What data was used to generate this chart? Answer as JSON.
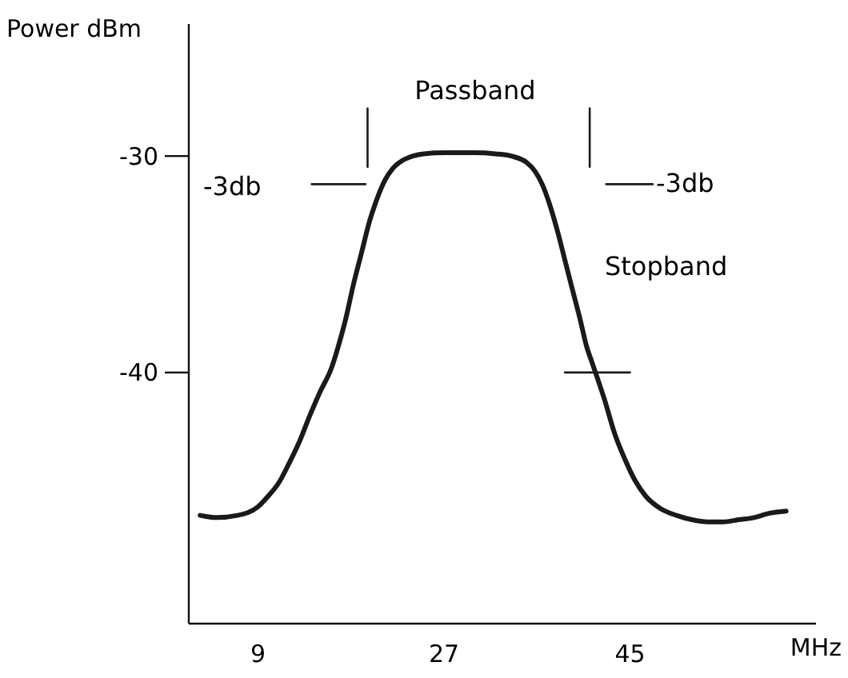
{
  "chart_data": {
    "type": "line",
    "xlabel": "MHz",
    "ylabel": "Power dBm",
    "xlim": [
      2.3,
      63
    ],
    "ylim": [
      -51.6,
      -23.9
    ],
    "xticks": [
      9,
      27,
      45
    ],
    "yticks": [
      -30,
      -40
    ],
    "grid": false,
    "marker": "none",
    "line_style": "solid",
    "series": [
      {
        "color": "#1a1a1a",
        "x": [
          3.4,
          5,
          7,
          9,
          10,
          11,
          12,
          13,
          14,
          15,
          16.1,
          17,
          17.5,
          18.2,
          19,
          19.8,
          20.5,
          21.3,
          22,
          23,
          24,
          25,
          27,
          30,
          32,
          33.5,
          35,
          35.8,
          36.5,
          37.2,
          38,
          38.8,
          39.5,
          40.2,
          40.8,
          41.3,
          41.8,
          42.5,
          43.5,
          44.5,
          45.5,
          46.5,
          48,
          49.5,
          51,
          52.5,
          54,
          55.5,
          57,
          58.5,
          60.1
        ],
        "values": [
          -46.6,
          -46.7,
          -46.6,
          -46.2,
          -45.7,
          -45.1,
          -44.2,
          -43.2,
          -42,
          -40.9,
          -39.8,
          -38.4,
          -37.5,
          -36,
          -34.5,
          -33,
          -32,
          -31.1,
          -30.6,
          -30.2,
          -30,
          -29.9,
          -29.85,
          -29.85,
          -29.9,
          -30,
          -30.3,
          -30.7,
          -31.3,
          -32.2,
          -33.5,
          -35,
          -36.3,
          -37.6,
          -38.8,
          -39.5,
          -40.2,
          -41.2,
          -42.8,
          -44,
          -45,
          -45.7,
          -46.3,
          -46.6,
          -46.8,
          -46.9,
          -46.9,
          -46.8,
          -46.7,
          -46.5,
          -46.4
        ]
      },
      {
        "type": "line",
        "color": "#1a1a1a",
        "x": [
          38.7,
          45
        ],
        "values": [
          -40,
          -40
        ]
      },
      {
        "type": "line",
        "color": "#1a1a1a",
        "x": [
          19.6,
          19.6
        ],
        "values": [
          -27.8,
          -30.5
        ]
      },
      {
        "type": "line",
        "color": "#1a1a1a",
        "x": [
          41.1,
          41.1
        ],
        "values": [
          -27.8,
          -30.5
        ]
      },
      {
        "type": "line",
        "color": "#1a1a1a",
        "x": [
          14.2,
          19.4
        ],
        "values": [
          -31.3,
          -31.3
        ]
      },
      {
        "type": "line",
        "color": "#1a1a1a",
        "x": [
          42.7,
          47.2
        ],
        "values": [
          -31.3,
          -31.3
        ]
      }
    ],
    "annotations": [
      "Passband",
      "-3db",
      "-3db",
      "Stopband"
    ]
  }
}
